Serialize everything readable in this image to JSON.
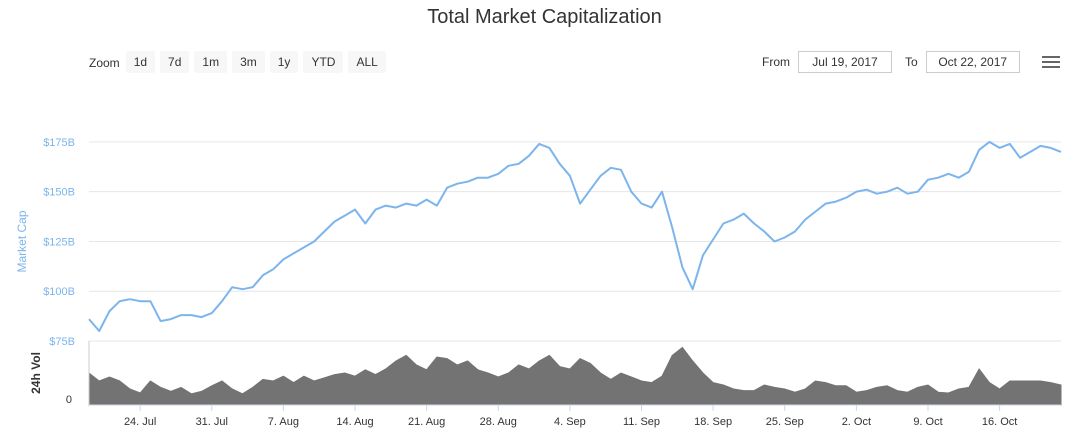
{
  "title": "Total Market Capitalization",
  "zoom": {
    "label": "Zoom",
    "buttons": [
      "1d",
      "7d",
      "1m",
      "3m",
      "1y",
      "YTD",
      "ALL"
    ]
  },
  "range": {
    "from_label": "From",
    "from_value": "Jul 19, 2017",
    "to_label": "To",
    "to_value": "Oct 22, 2017"
  },
  "colors": {
    "line": "#7cb5ec",
    "volume": "#737373",
    "grid": "#e6e6e6",
    "axis_label": "#7cb5ec"
  },
  "chart_data": [
    {
      "type": "line",
      "title": "Total Market Capitalization",
      "ylabel": "Market Cap",
      "ylim": [
        75,
        185
      ],
      "yticks": [
        "$75B",
        "$100B",
        "$125B",
        "$150B",
        "$175B"
      ],
      "ytick_values": [
        75,
        100,
        125,
        150,
        175
      ],
      "xlim": [
        "Jul 19, 2017",
        "Oct 22, 2017"
      ],
      "xticks": [
        "24. Jul",
        "31. Jul",
        "7. Aug",
        "14. Aug",
        "21. Aug",
        "28. Aug",
        "4. Sep",
        "11. Sep",
        "18. Sep",
        "25. Sep",
        "2. Oct",
        "9. Oct",
        "16. Oct"
      ],
      "xtick_dates": [
        "2017-07-24",
        "2017-07-31",
        "2017-08-07",
        "2017-08-14",
        "2017-08-21",
        "2017-08-28",
        "2017-09-04",
        "2017-09-11",
        "2017-09-18",
        "2017-09-25",
        "2017-10-02",
        "2017-10-09",
        "2017-10-16"
      ],
      "grid": true,
      "x": [
        "2017-07-19",
        "2017-07-20",
        "2017-07-21",
        "2017-07-22",
        "2017-07-23",
        "2017-07-24",
        "2017-07-25",
        "2017-07-26",
        "2017-07-27",
        "2017-07-28",
        "2017-07-29",
        "2017-07-30",
        "2017-07-31",
        "2017-08-01",
        "2017-08-02",
        "2017-08-03",
        "2017-08-04",
        "2017-08-05",
        "2017-08-06",
        "2017-08-07",
        "2017-08-08",
        "2017-08-09",
        "2017-08-10",
        "2017-08-11",
        "2017-08-12",
        "2017-08-13",
        "2017-08-14",
        "2017-08-15",
        "2017-08-16",
        "2017-08-17",
        "2017-08-18",
        "2017-08-19",
        "2017-08-20",
        "2017-08-21",
        "2017-08-22",
        "2017-08-23",
        "2017-08-24",
        "2017-08-25",
        "2017-08-26",
        "2017-08-27",
        "2017-08-28",
        "2017-08-29",
        "2017-08-30",
        "2017-08-31",
        "2017-09-01",
        "2017-09-02",
        "2017-09-03",
        "2017-09-04",
        "2017-09-05",
        "2017-09-06",
        "2017-09-07",
        "2017-09-08",
        "2017-09-09",
        "2017-09-10",
        "2017-09-11",
        "2017-09-12",
        "2017-09-13",
        "2017-09-14",
        "2017-09-15",
        "2017-09-16",
        "2017-09-17",
        "2017-09-18",
        "2017-09-19",
        "2017-09-20",
        "2017-09-21",
        "2017-09-22",
        "2017-09-23",
        "2017-09-24",
        "2017-09-25",
        "2017-09-26",
        "2017-09-27",
        "2017-09-28",
        "2017-09-29",
        "2017-09-30",
        "2017-10-01",
        "2017-10-02",
        "2017-10-03",
        "2017-10-04",
        "2017-10-05",
        "2017-10-06",
        "2017-10-07",
        "2017-10-08",
        "2017-10-09",
        "2017-10-10",
        "2017-10-11",
        "2017-10-12",
        "2017-10-13",
        "2017-10-14",
        "2017-10-15",
        "2017-10-16",
        "2017-10-17",
        "2017-10-18",
        "2017-10-19",
        "2017-10-20",
        "2017-10-21",
        "2017-10-22"
      ],
      "values": [
        86,
        80,
        90,
        95,
        96,
        95,
        95,
        85,
        86,
        88,
        88,
        87,
        89,
        95,
        102,
        101,
        102,
        108,
        111,
        116,
        119,
        122,
        125,
        130,
        135,
        138,
        141,
        134,
        141,
        143,
        142,
        144,
        143,
        146,
        143,
        152,
        154,
        155,
        157,
        157,
        159,
        163,
        164,
        168,
        174,
        172,
        164,
        158,
        144,
        151,
        158,
        162,
        161,
        150,
        144,
        142,
        150,
        132,
        112,
        101,
        118,
        126,
        134,
        136,
        139,
        134,
        130,
        125,
        127,
        130,
        136,
        140,
        144,
        145,
        147,
        150,
        151,
        149,
        150,
        152,
        149,
        150,
        156,
        157,
        159,
        157,
        160,
        171,
        175,
        172,
        174,
        167,
        170,
        173,
        172,
        170
      ],
      "series": [
        {
          "name": "Market Cap"
        }
      ]
    },
    {
      "type": "area",
      "ylabel": "24h Vol",
      "yticks": [
        "0"
      ],
      "ytick_values": [
        0
      ],
      "x": [
        "2017-07-19",
        "2017-07-20",
        "2017-07-21",
        "2017-07-22",
        "2017-07-23",
        "2017-07-24",
        "2017-07-25",
        "2017-07-26",
        "2017-07-27",
        "2017-07-28",
        "2017-07-29",
        "2017-07-30",
        "2017-07-31",
        "2017-08-01",
        "2017-08-02",
        "2017-08-03",
        "2017-08-04",
        "2017-08-05",
        "2017-08-06",
        "2017-08-07",
        "2017-08-08",
        "2017-08-09",
        "2017-08-10",
        "2017-08-11",
        "2017-08-12",
        "2017-08-13",
        "2017-08-14",
        "2017-08-15",
        "2017-08-16",
        "2017-08-17",
        "2017-08-18",
        "2017-08-19",
        "2017-08-20",
        "2017-08-21",
        "2017-08-22",
        "2017-08-23",
        "2017-08-24",
        "2017-08-25",
        "2017-08-26",
        "2017-08-27",
        "2017-08-28",
        "2017-08-29",
        "2017-08-30",
        "2017-08-31",
        "2017-09-01",
        "2017-09-02",
        "2017-09-03",
        "2017-09-04",
        "2017-09-05",
        "2017-09-06",
        "2017-09-07",
        "2017-09-08",
        "2017-09-09",
        "2017-09-10",
        "2017-09-11",
        "2017-09-12",
        "2017-09-13",
        "2017-09-14",
        "2017-09-15",
        "2017-09-16",
        "2017-09-17",
        "2017-09-18",
        "2017-09-19",
        "2017-09-20",
        "2017-09-21",
        "2017-09-22",
        "2017-09-23",
        "2017-09-24",
        "2017-09-25",
        "2017-09-26",
        "2017-09-27",
        "2017-09-28",
        "2017-09-29",
        "2017-09-30",
        "2017-10-01",
        "2017-10-02",
        "2017-10-03",
        "2017-10-04",
        "2017-10-05",
        "2017-10-06",
        "2017-10-07",
        "2017-10-08",
        "2017-10-09",
        "2017-10-10",
        "2017-10-11",
        "2017-10-12",
        "2017-10-13",
        "2017-10-14",
        "2017-10-15",
        "2017-10-16",
        "2017-10-17",
        "2017-10-18",
        "2017-10-19",
        "2017-10-20",
        "2017-10-21",
        "2017-10-22"
      ],
      "values": [
        0.4,
        0.3,
        0.35,
        0.3,
        0.2,
        0.15,
        0.3,
        0.22,
        0.17,
        0.22,
        0.14,
        0.17,
        0.24,
        0.3,
        0.2,
        0.14,
        0.22,
        0.32,
        0.3,
        0.36,
        0.28,
        0.36,
        0.3,
        0.34,
        0.38,
        0.4,
        0.36,
        0.44,
        0.38,
        0.45,
        0.55,
        0.62,
        0.5,
        0.44,
        0.6,
        0.58,
        0.5,
        0.55,
        0.44,
        0.4,
        0.35,
        0.4,
        0.5,
        0.45,
        0.55,
        0.62,
        0.48,
        0.45,
        0.58,
        0.52,
        0.4,
        0.32,
        0.4,
        0.35,
        0.3,
        0.28,
        0.36,
        0.62,
        0.72,
        0.55,
        0.4,
        0.28,
        0.25,
        0.2,
        0.18,
        0.18,
        0.25,
        0.22,
        0.2,
        0.16,
        0.2,
        0.3,
        0.28,
        0.24,
        0.24,
        0.16,
        0.18,
        0.22,
        0.24,
        0.18,
        0.16,
        0.22,
        0.25,
        0.16,
        0.15,
        0.2,
        0.22,
        0.45,
        0.28,
        0.2,
        0.3,
        0.3,
        0.3,
        0.3,
        0.28,
        0.25
      ]
    }
  ]
}
